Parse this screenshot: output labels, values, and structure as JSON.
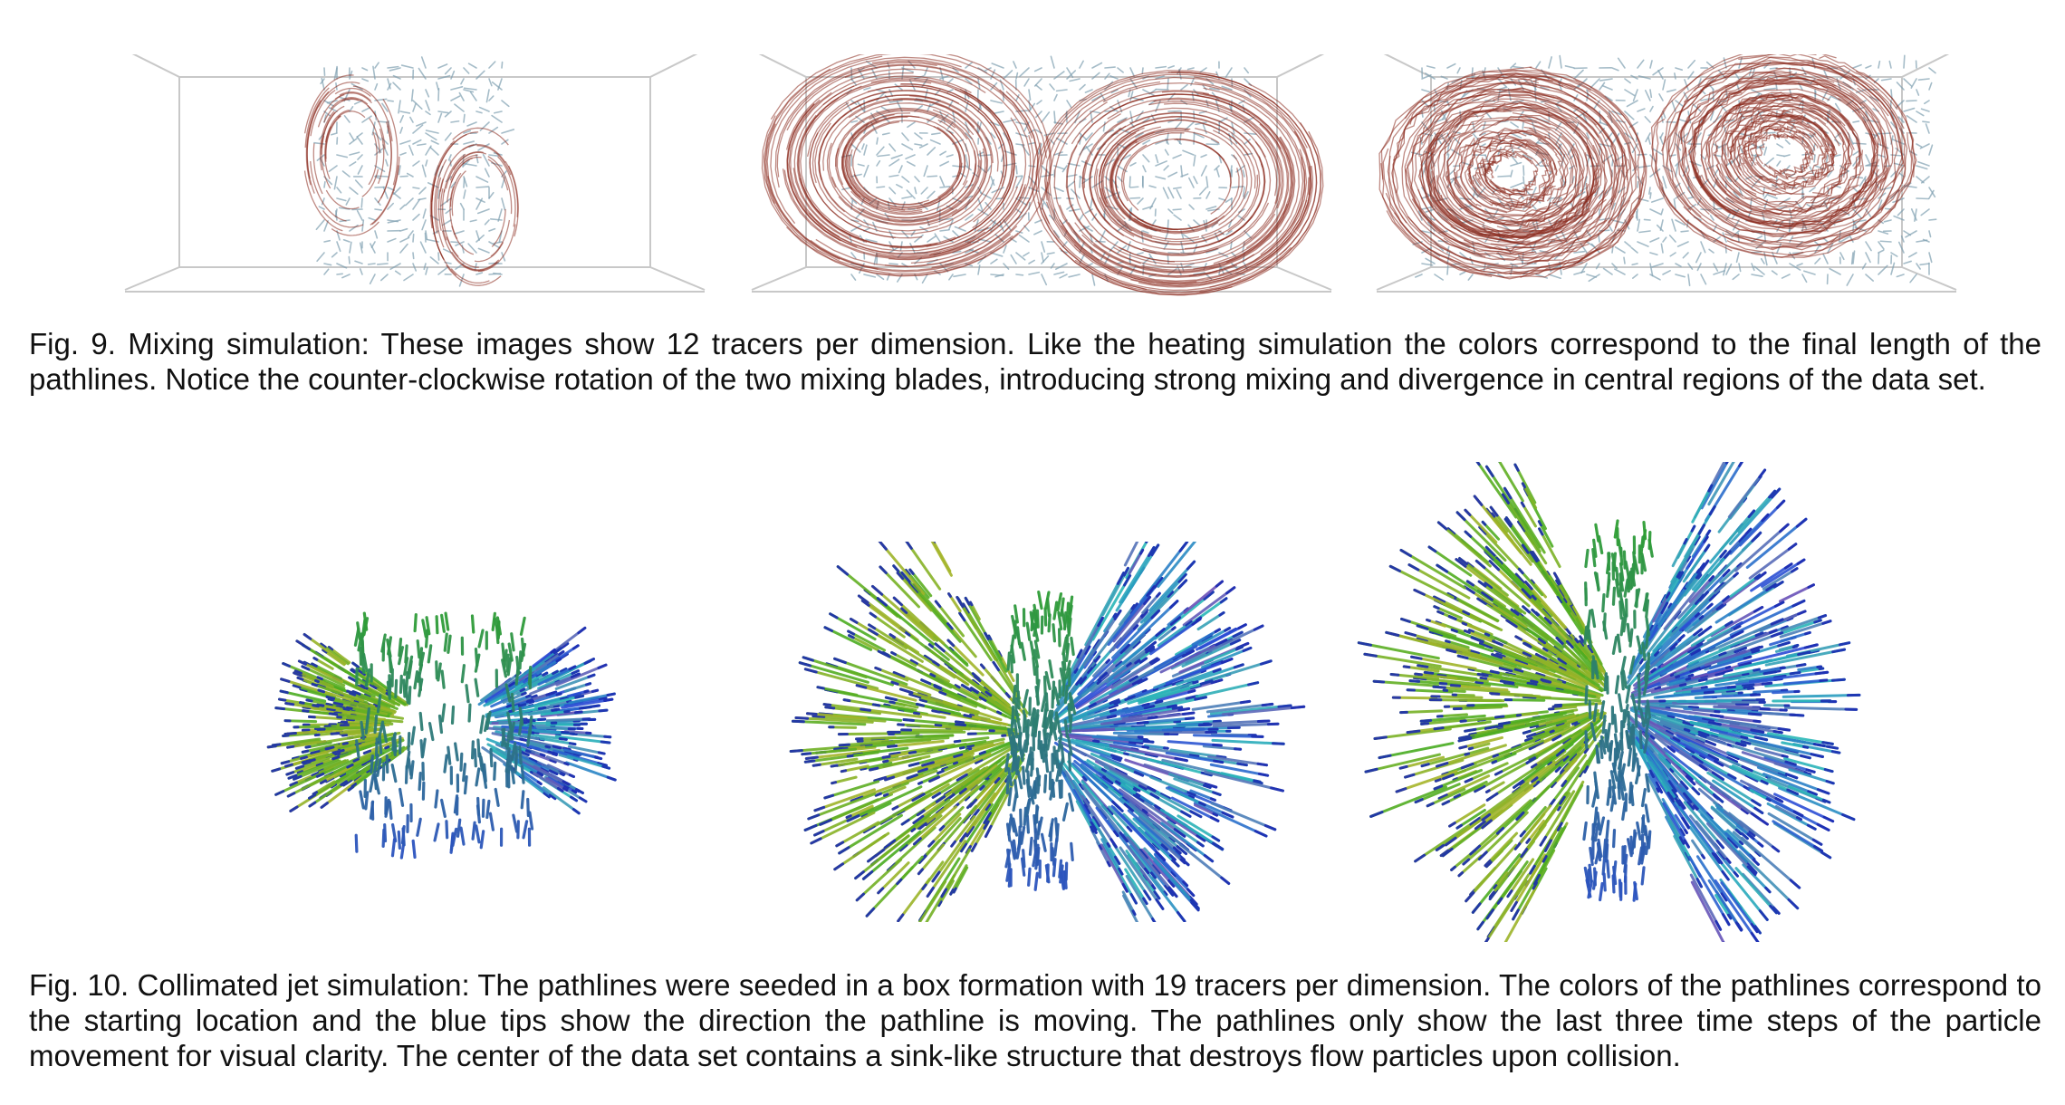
{
  "figure9": {
    "caption": "Fig. 9. Mixing simulation: These images show 12 tracers per dimension. Like the heating simulation the colors correspond to the final length of the pathlines. Notice the counter-clockwise rotation of the two mixing blades, introducing strong mixing and divergence in central regions of the data set.",
    "panels": [
      {
        "name": "mixing-panel-early",
        "icon": "swirl-pathlines-image"
      },
      {
        "name": "mixing-panel-middle",
        "icon": "swirl-pathlines-image"
      },
      {
        "name": "mixing-panel-late",
        "icon": "swirl-pathlines-image"
      }
    ],
    "colors": {
      "long": "#8b2a1e",
      "short": "#7f9fb0",
      "box": "#c8c8c8"
    }
  },
  "figure10": {
    "caption": "Fig. 10. Collimated jet simulation: The pathlines were seeded in a box formation with 19 tracers per dimension. The colors of the pathlines correspond to the starting location and the blue tips show the direction the pathline is moving. The pathlines only show the last three time steps of the particle movement for visual clarity. The center of the data set contains a sink-like structure that destroys flow particles upon collision.",
    "panels": [
      {
        "name": "jet-panel-early",
        "icon": "jet-pathlines-image"
      },
      {
        "name": "jet-panel-middle",
        "icon": "jet-pathlines-image"
      },
      {
        "name": "jet-panel-late",
        "icon": "jet-pathlines-image"
      }
    ],
    "colors": {
      "tip": "#1b2bb0",
      "green": "#2faa1e",
      "cyan": "#29b7b7",
      "blue": "#2b47d6",
      "yellow": "#a7b52a",
      "purple": "#6a4fb8"
    }
  }
}
